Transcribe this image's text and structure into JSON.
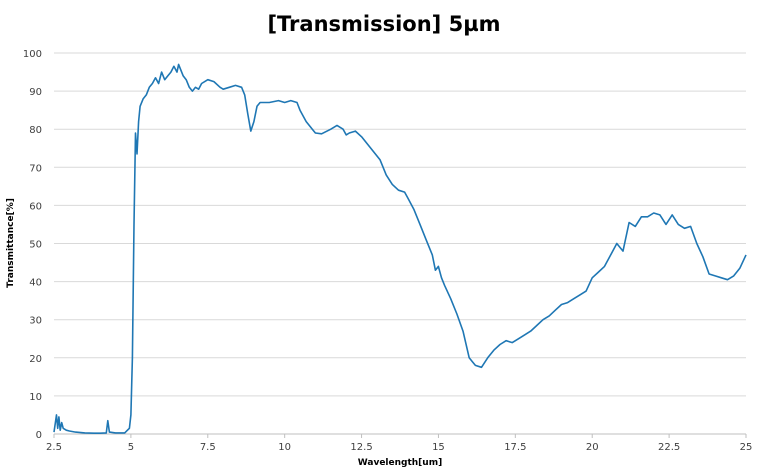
{
  "chart_data": {
    "type": "line",
    "title": "[Transmission] 5µm",
    "xlabel": "Wavelength[um]",
    "ylabel": "Transmittance[%]",
    "xlim": [
      2.5,
      25
    ],
    "ylim": [
      0,
      100
    ],
    "xticks": [
      "2.5",
      "5",
      "7.5",
      "10",
      "12.5",
      "15",
      "17.5",
      "20",
      "22.5",
      "25"
    ],
    "yticks": [
      "0",
      "10",
      "20",
      "30",
      "40",
      "50",
      "60",
      "70",
      "80",
      "90",
      "100"
    ],
    "grid": true,
    "line_color": "#1f77b4",
    "series": [
      {
        "x": [
          2.5,
          2.58,
          2.62,
          2.66,
          2.7,
          2.75,
          2.8,
          2.9,
          3.0,
          3.2,
          3.5,
          3.8,
          4.0,
          4.2,
          4.25,
          4.3,
          4.5,
          4.8,
          4.95,
          5.0,
          5.05,
          5.1,
          5.15,
          5.2,
          5.25,
          5.3,
          5.4,
          5.5,
          5.6,
          5.7,
          5.8,
          5.9,
          6.0,
          6.1,
          6.2,
          6.3,
          6.4,
          6.5,
          6.55,
          6.6,
          6.7,
          6.8,
          6.9,
          7.0,
          7.1,
          7.2,
          7.3,
          7.5,
          7.7,
          7.9,
          8.0,
          8.2,
          8.4,
          8.6,
          8.7,
          8.8,
          8.9,
          9.0,
          9.1,
          9.2,
          9.3,
          9.5,
          9.8,
          10.0,
          10.2,
          10.4,
          10.5,
          10.7,
          10.9,
          11.0,
          11.2,
          11.5,
          11.7,
          11.9,
          12.0,
          12.1,
          12.3,
          12.5,
          12.7,
          12.9,
          13.1,
          13.3,
          13.5,
          13.7,
          13.9,
          14.0,
          14.2,
          14.4,
          14.6,
          14.8,
          14.9,
          15.0,
          15.1,
          15.2,
          15.4,
          15.6,
          15.8,
          16.0,
          16.1,
          16.2,
          16.4,
          16.6,
          16.8,
          17.0,
          17.2,
          17.4,
          17.6,
          17.8,
          18.0,
          18.2,
          18.4,
          18.6,
          18.8,
          19.0,
          19.2,
          19.4,
          19.6,
          19.8,
          20.0,
          20.2,
          20.4,
          20.6,
          20.8,
          21.0,
          21.2,
          21.4,
          21.6,
          21.8,
          22.0,
          22.2,
          22.4,
          22.6,
          22.8,
          23.0,
          23.2,
          23.4,
          23.6,
          23.8,
          24.0,
          24.2,
          24.4,
          24.6,
          24.8,
          25.0
        ],
        "y": [
          0.5,
          5.0,
          1.5,
          4.5,
          1.0,
          3.0,
          1.5,
          1.0,
          0.8,
          0.5,
          0.3,
          0.2,
          0.2,
          0.3,
          3.5,
          0.5,
          0.3,
          0.3,
          1.5,
          5.0,
          20.0,
          55.0,
          79.0,
          73.5,
          82.0,
          86.0,
          88.0,
          89.0,
          91.0,
          92.0,
          93.5,
          92.0,
          95.0,
          93.0,
          94.0,
          95.0,
          96.5,
          95.0,
          97.0,
          96.0,
          94.0,
          93.0,
          91.0,
          90.0,
          91.0,
          90.5,
          92.0,
          93.0,
          92.5,
          91.0,
          90.5,
          91.0,
          91.5,
          91.0,
          89.0,
          84.0,
          79.5,
          82.0,
          86.0,
          87.0,
          87.0,
          87.0,
          87.5,
          87.0,
          87.5,
          87.0,
          85.0,
          82.0,
          80.0,
          79.0,
          78.8,
          80.0,
          81.0,
          80.0,
          78.5,
          79.0,
          79.5,
          78.0,
          76.0,
          74.0,
          72.0,
          68.0,
          65.5,
          64.0,
          63.5,
          62.0,
          59.0,
          55.0,
          51.0,
          47.0,
          43.0,
          44.0,
          41.0,
          39.0,
          35.5,
          31.5,
          27.0,
          20.0,
          19.0,
          18.0,
          17.5,
          20.0,
          22.0,
          23.5,
          24.5,
          24.0,
          25.0,
          26.0,
          27.0,
          28.5,
          30.0,
          31.0,
          32.5,
          34.0,
          34.5,
          35.5,
          36.5,
          37.5,
          41.0,
          42.5,
          44.0,
          47.0,
          50.0,
          48.0,
          55.5,
          54.5,
          57.0,
          57.0,
          58.0,
          57.5,
          55.0,
          57.5,
          55.0,
          54.0,
          54.5,
          50.0,
          46.5,
          42.0,
          41.5,
          41.0,
          40.5,
          41.5,
          43.5,
          47.0
        ]
      }
    ]
  }
}
